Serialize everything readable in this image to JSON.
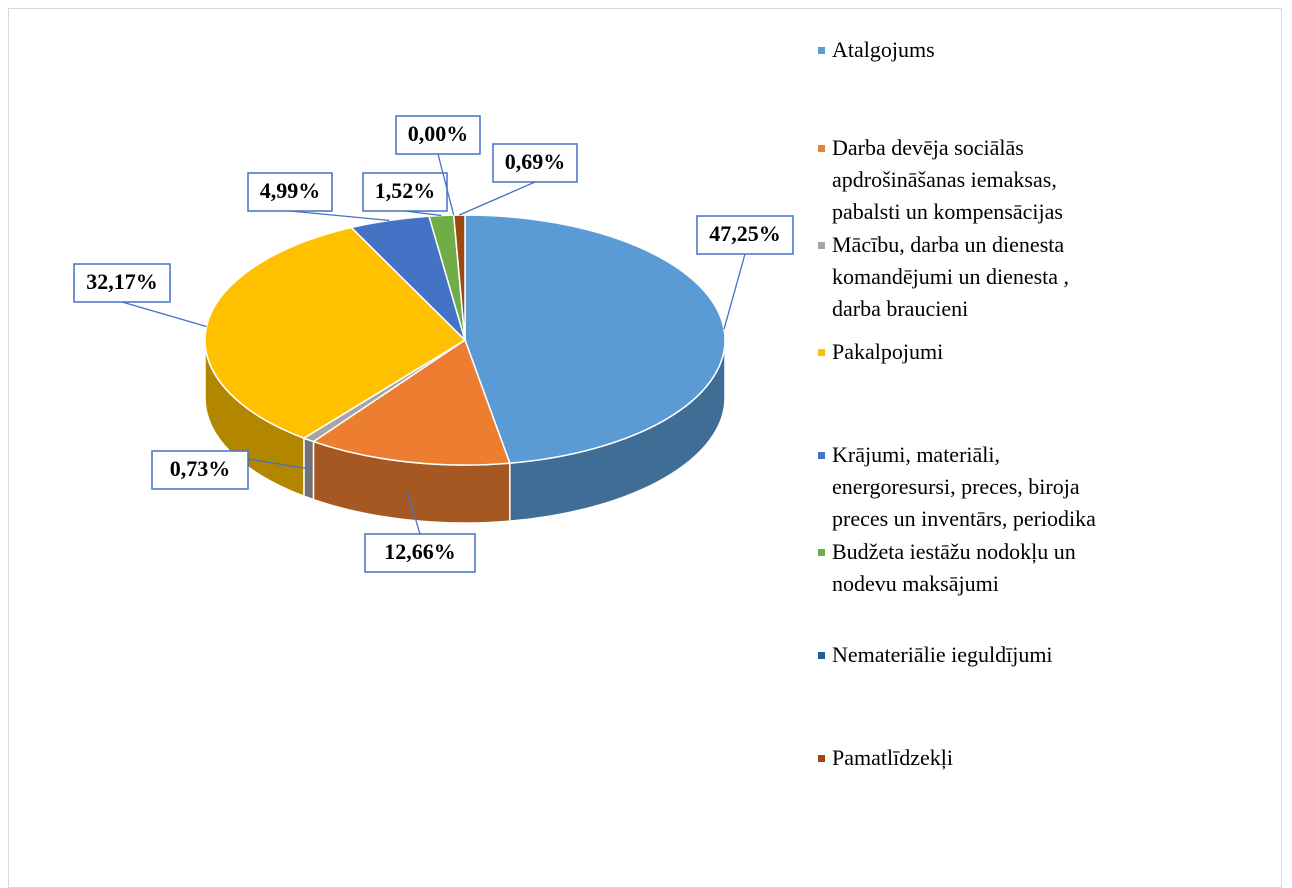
{
  "chart_data": {
    "type": "pie",
    "categories": [
      "Atalgojums",
      "Darba devēja sociālās apdrošināšanas iemaksas, pabalsti un kompensācijas",
      "Mācību, darba un dienesta komandējumi un dienesta , darba braucieni",
      "Pakalpojumi",
      "Krājumi, materiāli, energoresursi, preces, biroja preces un inventārs, periodika",
      "Budžeta iestāžu nodokļu un nodevu maksājumi",
      "Nemateriālie ieguldījumi",
      "Pamatlīdzekļi"
    ],
    "values": [
      47.25,
      12.66,
      0.73,
      32.17,
      4.99,
      1.52,
      0.0,
      0.69
    ],
    "value_labels": [
      "47,25%",
      "12,66%",
      "0,73%",
      "32,17%",
      "4,99%",
      "1,52%",
      "0,00%",
      "0,69%"
    ],
    "colors": [
      "#5b9bd5",
      "#ed7d31",
      "#a5a5a5",
      "#ffc000",
      "#4472c4",
      "#70ad47",
      "#255e91",
      "#9e480e"
    ]
  }
}
